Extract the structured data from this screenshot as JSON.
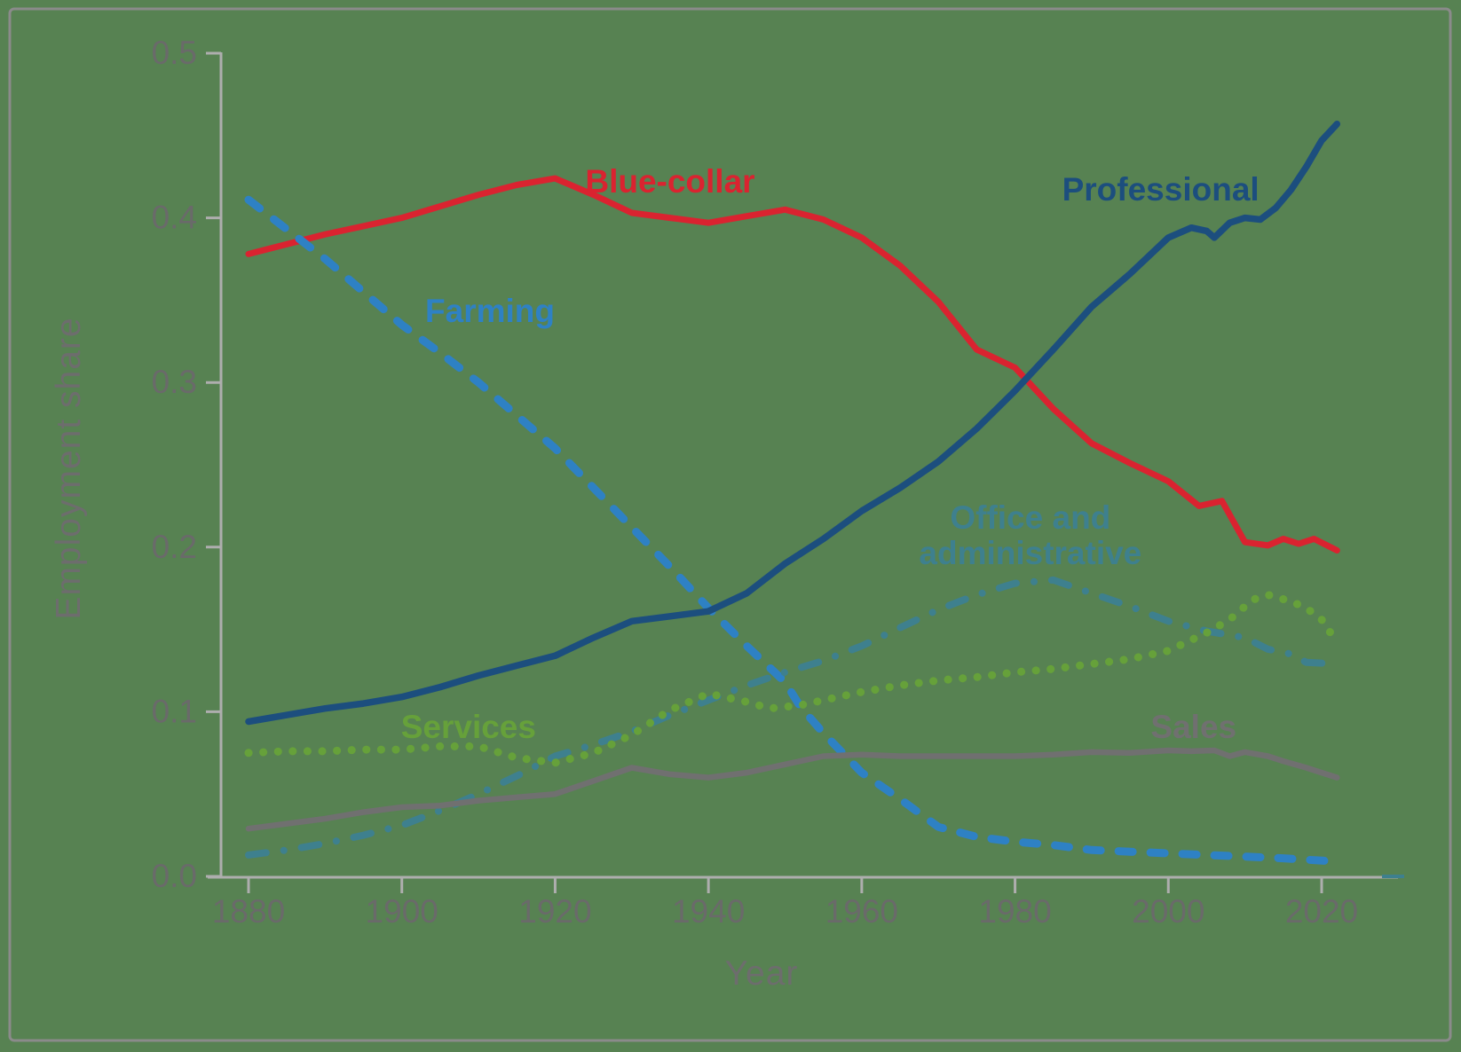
{
  "figure": {
    "background_color": "#578252",
    "frame_color": "#8b8b8b",
    "axis_color": "#aeaeae",
    "tick_label_color": "#6a6a6a",
    "axis_title_color": "#6d6d6d",
    "axis_end_dash_color": "#3e808e"
  },
  "chart_data": {
    "type": "line",
    "title": "",
    "xlabel": "Year",
    "ylabel": "Employment share",
    "xlim": [
      1872,
      2030
    ],
    "ylim": [
      0.0,
      0.5
    ],
    "grid": false,
    "legend": "inline-labels-near-lines",
    "x_ticks": [
      1880,
      1900,
      1920,
      1940,
      1960,
      1980,
      2000,
      2020
    ],
    "x_tick_labels": [
      "1880",
      "1900",
      "1920",
      "1940",
      "1960",
      "1980",
      "2000",
      "2020"
    ],
    "y_ticks": [
      0.0,
      0.1,
      0.2,
      0.3,
      0.4,
      0.5
    ],
    "y_tick_labels": [
      "0.0",
      "0.1",
      "0.2",
      "0.3",
      "0.4",
      "0.5"
    ],
    "series": [
      {
        "name": "Blue-collar",
        "color": "#da2330",
        "style": "solid",
        "width": 7,
        "label": {
          "text": "Blue-collar",
          "year": 1935,
          "value": 0.422
        },
        "points": [
          [
            1880,
            0.378
          ],
          [
            1885,
            0.384
          ],
          [
            1890,
            0.39
          ],
          [
            1895,
            0.395
          ],
          [
            1900,
            0.4
          ],
          [
            1905,
            0.407
          ],
          [
            1910,
            0.414
          ],
          [
            1915,
            0.42
          ],
          [
            1920,
            0.424
          ],
          [
            1925,
            0.414
          ],
          [
            1930,
            0.403
          ],
          [
            1935,
            0.4
          ],
          [
            1940,
            0.397
          ],
          [
            1945,
            0.401
          ],
          [
            1950,
            0.405
          ],
          [
            1955,
            0.399
          ],
          [
            1960,
            0.388
          ],
          [
            1965,
            0.371
          ],
          [
            1970,
            0.349
          ],
          [
            1975,
            0.32
          ],
          [
            1980,
            0.309
          ],
          [
            1985,
            0.284
          ],
          [
            1990,
            0.263
          ],
          [
            1995,
            0.251
          ],
          [
            2000,
            0.24
          ],
          [
            2004,
            0.225
          ],
          [
            2007,
            0.228
          ],
          [
            2010,
            0.203
          ],
          [
            2013,
            0.201
          ],
          [
            2015,
            0.205
          ],
          [
            2017,
            0.202
          ],
          [
            2019,
            0.205
          ],
          [
            2022,
            0.198
          ]
        ]
      },
      {
        "name": "Farming",
        "color": "#2e81c4",
        "style": "dashed",
        "width": 9,
        "label": {
          "text": "Farming",
          "year": 1911.5,
          "value": 0.343
        },
        "points": [
          [
            1880,
            0.411
          ],
          [
            1885,
            0.393
          ],
          [
            1890,
            0.375
          ],
          [
            1895,
            0.355
          ],
          [
            1900,
            0.335
          ],
          [
            1905,
            0.318
          ],
          [
            1910,
            0.3
          ],
          [
            1915,
            0.28
          ],
          [
            1920,
            0.26
          ],
          [
            1925,
            0.236
          ],
          [
            1930,
            0.212
          ],
          [
            1935,
            0.188
          ],
          [
            1940,
            0.163
          ],
          [
            1945,
            0.14
          ],
          [
            1950,
            0.118
          ],
          [
            1952,
            0.103
          ],
          [
            1955,
            0.087
          ],
          [
            1960,
            0.063
          ],
          [
            1965,
            0.047
          ],
          [
            1970,
            0.03
          ],
          [
            1975,
            0.024
          ],
          [
            1980,
            0.021
          ],
          [
            1985,
            0.019
          ],
          [
            1990,
            0.016
          ],
          [
            1995,
            0.015
          ],
          [
            2000,
            0.014
          ],
          [
            2005,
            0.013
          ],
          [
            2010,
            0.012
          ],
          [
            2015,
            0.011
          ],
          [
            2022,
            0.009
          ]
        ]
      },
      {
        "name": "Professional",
        "color": "#1c4e7e",
        "style": "solid",
        "width": 7.5,
        "label": {
          "text": "Professional",
          "year": 1999,
          "value": 0.417
        },
        "points": [
          [
            1880,
            0.094
          ],
          [
            1885,
            0.098
          ],
          [
            1890,
            0.102
          ],
          [
            1895,
            0.105
          ],
          [
            1900,
            0.109
          ],
          [
            1905,
            0.115
          ],
          [
            1910,
            0.122
          ],
          [
            1915,
            0.128
          ],
          [
            1920,
            0.134
          ],
          [
            1925,
            0.145
          ],
          [
            1930,
            0.155
          ],
          [
            1935,
            0.158
          ],
          [
            1940,
            0.161
          ],
          [
            1945,
            0.172
          ],
          [
            1950,
            0.19
          ],
          [
            1955,
            0.205
          ],
          [
            1960,
            0.222
          ],
          [
            1965,
            0.236
          ],
          [
            1970,
            0.252
          ],
          [
            1975,
            0.272
          ],
          [
            1980,
            0.295
          ],
          [
            1985,
            0.32
          ],
          [
            1990,
            0.346
          ],
          [
            1995,
            0.366
          ],
          [
            2000,
            0.388
          ],
          [
            2003,
            0.394
          ],
          [
            2005,
            0.392
          ],
          [
            2006,
            0.388
          ],
          [
            2008,
            0.397
          ],
          [
            2010,
            0.4
          ],
          [
            2012,
            0.399
          ],
          [
            2014,
            0.406
          ],
          [
            2016,
            0.417
          ],
          [
            2018,
            0.431
          ],
          [
            2020,
            0.447
          ],
          [
            2022,
            0.457
          ]
        ]
      },
      {
        "name": "Office and administrative",
        "color": "#3e808e",
        "style": "dashdot",
        "width": 8,
        "label": {
          "text": "Office and\nadministrative",
          "year": 1982,
          "value": 0.207
        },
        "points": [
          [
            1880,
            0.013
          ],
          [
            1885,
            0.016
          ],
          [
            1890,
            0.02
          ],
          [
            1895,
            0.025
          ],
          [
            1900,
            0.031
          ],
          [
            1905,
            0.04
          ],
          [
            1910,
            0.05
          ],
          [
            1915,
            0.061
          ],
          [
            1920,
            0.073
          ],
          [
            1925,
            0.08
          ],
          [
            1930,
            0.088
          ],
          [
            1935,
            0.098
          ],
          [
            1940,
            0.107
          ],
          [
            1945,
            0.116
          ],
          [
            1950,
            0.124
          ],
          [
            1955,
            0.131
          ],
          [
            1960,
            0.14
          ],
          [
            1965,
            0.151
          ],
          [
            1970,
            0.162
          ],
          [
            1975,
            0.171
          ],
          [
            1980,
            0.178
          ],
          [
            1985,
            0.18
          ],
          [
            1990,
            0.172
          ],
          [
            1995,
            0.164
          ],
          [
            2000,
            0.155
          ],
          [
            2005,
            0.149
          ],
          [
            2010,
            0.145
          ],
          [
            2013,
            0.138
          ],
          [
            2016,
            0.135
          ],
          [
            2018,
            0.13
          ],
          [
            2022,
            0.129
          ]
        ]
      },
      {
        "name": "Services",
        "color": "#66a13a",
        "style": "dotted",
        "width": 9,
        "label": {
          "text": "Services",
          "year": 1908.7,
          "value": 0.0905
        },
        "points": [
          [
            1880,
            0.075
          ],
          [
            1885,
            0.076
          ],
          [
            1890,
            0.076
          ],
          [
            1895,
            0.077
          ],
          [
            1900,
            0.077
          ],
          [
            1905,
            0.079
          ],
          [
            1910,
            0.079
          ],
          [
            1915,
            0.072
          ],
          [
            1920,
            0.069
          ],
          [
            1925,
            0.075
          ],
          [
            1930,
            0.086
          ],
          [
            1935,
            0.101
          ],
          [
            1940,
            0.111
          ],
          [
            1945,
            0.106
          ],
          [
            1948,
            0.102
          ],
          [
            1952,
            0.104
          ],
          [
            1955,
            0.107
          ],
          [
            1960,
            0.112
          ],
          [
            1965,
            0.116
          ],
          [
            1970,
            0.119
          ],
          [
            1975,
            0.121
          ],
          [
            1980,
            0.124
          ],
          [
            1985,
            0.126
          ],
          [
            1990,
            0.129
          ],
          [
            1995,
            0.132
          ],
          [
            2000,
            0.137
          ],
          [
            2005,
            0.148
          ],
          [
            2008,
            0.156
          ],
          [
            2011,
            0.168
          ],
          [
            2013,
            0.171
          ],
          [
            2016,
            0.167
          ],
          [
            2018,
            0.163
          ],
          [
            2020,
            0.156
          ],
          [
            2022,
            0.142
          ]
        ]
      },
      {
        "name": "Sales",
        "color": "#707070",
        "style": "solid",
        "width": 6.5,
        "label": {
          "text": "Sales",
          "year": 2003.3,
          "value": 0.0905
        },
        "points": [
          [
            1880,
            0.029
          ],
          [
            1885,
            0.032
          ],
          [
            1890,
            0.035
          ],
          [
            1895,
            0.039
          ],
          [
            1900,
            0.042
          ],
          [
            1905,
            0.043
          ],
          [
            1910,
            0.046
          ],
          [
            1915,
            0.048
          ],
          [
            1920,
            0.05
          ],
          [
            1925,
            0.058
          ],
          [
            1930,
            0.066
          ],
          [
            1935,
            0.062
          ],
          [
            1940,
            0.06
          ],
          [
            1945,
            0.063
          ],
          [
            1950,
            0.068
          ],
          [
            1955,
            0.073
          ],
          [
            1960,
            0.074
          ],
          [
            1965,
            0.073
          ],
          [
            1970,
            0.073
          ],
          [
            1975,
            0.073
          ],
          [
            1980,
            0.073
          ],
          [
            1985,
            0.074
          ],
          [
            1990,
            0.0755
          ],
          [
            1995,
            0.075
          ],
          [
            2000,
            0.0765
          ],
          [
            2003,
            0.076
          ],
          [
            2006,
            0.0765
          ],
          [
            2008,
            0.073
          ],
          [
            2010,
            0.0755
          ],
          [
            2013,
            0.073
          ],
          [
            2015,
            0.07
          ],
          [
            2018,
            0.066
          ],
          [
            2020,
            0.063
          ],
          [
            2022,
            0.06
          ]
        ]
      }
    ]
  }
}
